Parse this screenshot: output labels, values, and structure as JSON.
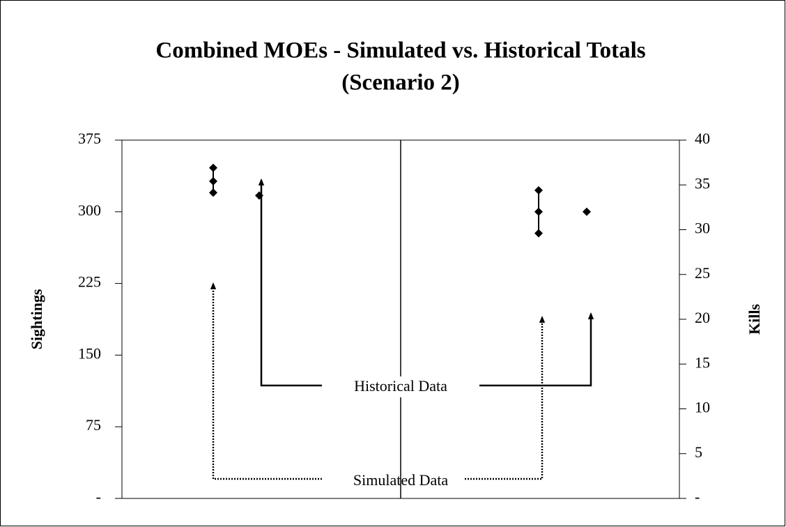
{
  "chart_data": {
    "type": "scatter",
    "title": "Combined MOEs - Simulated vs. Historical Totals",
    "subtitle": "(Scenario 2)",
    "ylabel": "Sightings",
    "y2label": "Kills",
    "ylim": [
      0,
      375
    ],
    "yticks": [
      {
        "value": 0,
        "label": "-"
      },
      75,
      150,
      225,
      300,
      375
    ],
    "y2lim": [
      0,
      40
    ],
    "y2ticks": [
      {
        "value": 0,
        "label": "-"
      },
      5,
      10,
      15,
      20,
      25,
      30,
      35,
      40
    ],
    "color": "#000000",
    "series": [
      {
        "axis": "y",
        "simulated": [
          320,
          332,
          346
        ],
        "historical": 317
      },
      {
        "axis": "y2",
        "simulated": [
          29.6,
          32,
          34.4
        ],
        "historical": 32
      }
    ],
    "annotations": [
      "Historical Data",
      "Simulated Data"
    ]
  }
}
